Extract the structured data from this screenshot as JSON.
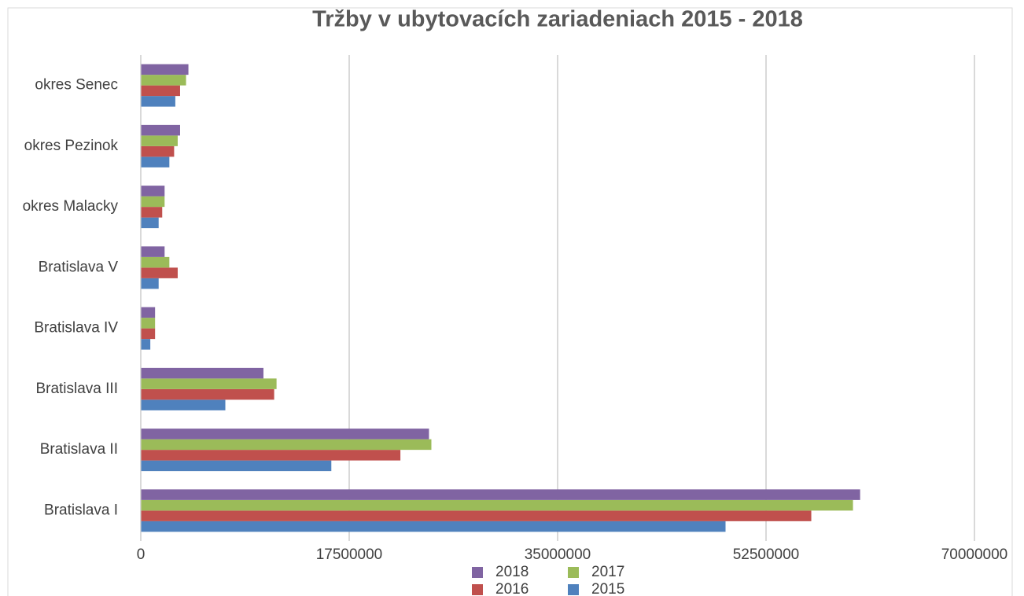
{
  "chart_data": {
    "type": "bar",
    "orientation": "horizontal",
    "title": "Tržby v ubytovacích zariadeniach 2015 - 2018",
    "categories": [
      "Bratislava I",
      "Bratislava II",
      "Bratislava III",
      "Bratislava IV",
      "Bratislava V",
      "okres Malacky",
      "okres Pezinok",
      "okres Senec"
    ],
    "series": [
      {
        "name": "2015",
        "color": "#4f81bd",
        "values": [
          49100000,
          16000000,
          7100000,
          800000,
          1500000,
          1500000,
          2400000,
          2900000
        ]
      },
      {
        "name": "2016",
        "color": "#c0504d",
        "values": [
          56300000,
          21800000,
          11200000,
          1200000,
          3100000,
          1800000,
          2800000,
          3300000
        ]
      },
      {
        "name": "2017",
        "color": "#9bbb59",
        "values": [
          59800000,
          24400000,
          11400000,
          1200000,
          2400000,
          2000000,
          3100000,
          3800000
        ]
      },
      {
        "name": "2018",
        "color": "#8064a2",
        "values": [
          60400000,
          24200000,
          10300000,
          1200000,
          2000000,
          2000000,
          3300000,
          4000000
        ]
      }
    ],
    "xlim": [
      0,
      70000000
    ],
    "xticks": [
      0,
      17500000,
      35000000,
      52500000,
      70000000
    ],
    "grid": true,
    "legend": "bottom"
  }
}
